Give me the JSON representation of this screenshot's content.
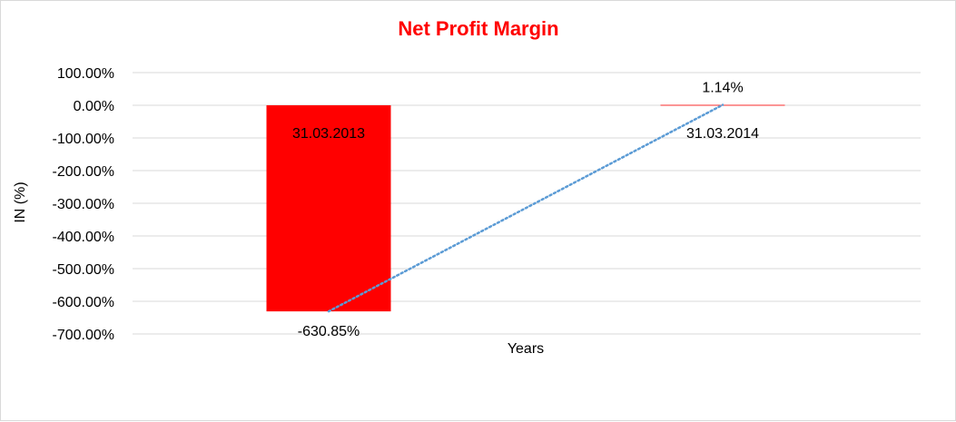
{
  "chart_data": {
    "type": "bar",
    "title": "Net Profit Margin",
    "xlabel": "Years",
    "ylabel": "IN (%)",
    "categories": [
      "31.03.2013",
      "31.03.2014"
    ],
    "series": [
      {
        "values": [
          -630.85,
          1.14
        ],
        "labels": [
          "-630.85%",
          "1.14%"
        ]
      }
    ],
    "ylim": [
      -700,
      100
    ],
    "yticks": [
      100,
      0,
      -100,
      -200,
      -300,
      -400,
      -500,
      -600,
      -700
    ],
    "ytick_labels": [
      "100.00%",
      "0.00%",
      "-100.00%",
      "-200.00%",
      "-300.00%",
      "-400.00%",
      "-500.00%",
      "-600.00%",
      "-700.00%"
    ],
    "trendline": {
      "style": "dotted",
      "from": -630.85,
      "to": 1.14
    },
    "grid": true,
    "legend": "none",
    "colors": {
      "bar": "#ff0000",
      "title": "#ff0000",
      "trendline": "#5b9bd5",
      "grid": "#d9d9d9"
    }
  }
}
